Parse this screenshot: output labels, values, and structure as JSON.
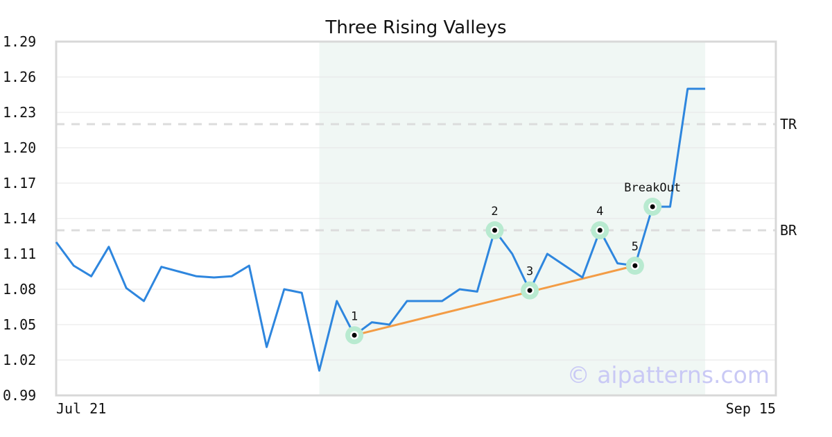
{
  "chart_data": {
    "type": "line",
    "title": "Three Rising Valleys",
    "xlabel": "",
    "ylabel": "",
    "ylim": [
      0.99,
      1.29
    ],
    "yticks": [
      "0.99",
      "1.02",
      "1.05",
      "1.08",
      "1.11",
      "1.14",
      "1.17",
      "1.20",
      "1.23",
      "1.26",
      "1.29"
    ],
    "x_tick_labels": [
      "Jul 21",
      "Sep 15"
    ],
    "grid": "horizontal",
    "series": [
      {
        "values": [
          1.12,
          1.1,
          1.091,
          1.116,
          1.081,
          1.07,
          1.099,
          1.095,
          1.091,
          1.09,
          1.091,
          1.1,
          1.031,
          1.08,
          1.077,
          1.011,
          1.07,
          1.041,
          1.052,
          1.05,
          1.07,
          1.07,
          1.07,
          1.08,
          1.078,
          1.13,
          1.11,
          1.079,
          1.11,
          1.1,
          1.09,
          1.13,
          1.102,
          1.1,
          1.15,
          1.15,
          1.25,
          1.25
        ],
        "color": "#2e86de"
      }
    ],
    "highlight_region": {
      "start_index": 15,
      "end_index": 37,
      "color": "#f0f7f4"
    },
    "levels": [
      {
        "label": "TR",
        "value": 1.22
      },
      {
        "label": "BR",
        "value": 1.13
      }
    ],
    "trendline": {
      "from_index": 17,
      "to_index": 33,
      "color": "#f39c45"
    },
    "points": [
      {
        "label": "1",
        "index": 17,
        "value": 1.041
      },
      {
        "label": "2",
        "index": 25,
        "value": 1.13
      },
      {
        "label": "3",
        "index": 27,
        "value": 1.079
      },
      {
        "label": "4",
        "index": 31,
        "value": 1.13
      },
      {
        "label": "5",
        "index": 33,
        "value": 1.1
      },
      {
        "label": "BreakOut",
        "index": 34,
        "value": 1.15
      }
    ],
    "watermark": "© aipatterns.com"
  }
}
